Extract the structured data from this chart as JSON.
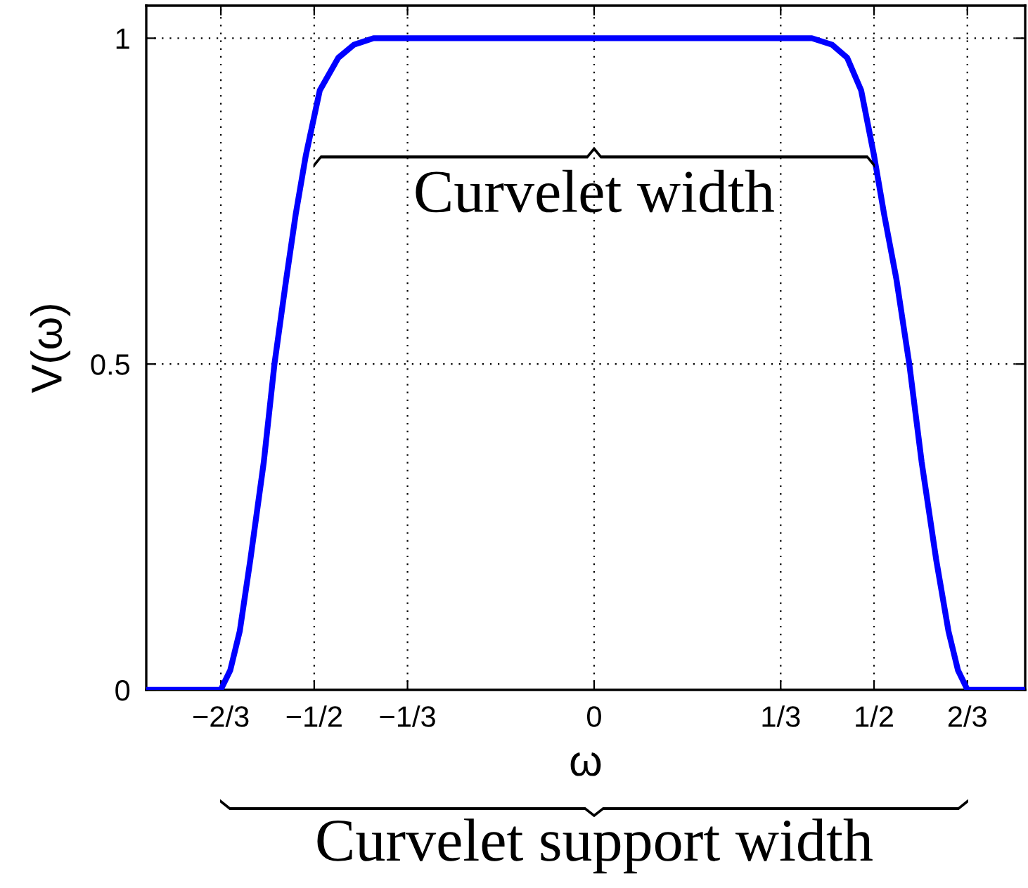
{
  "chart_data": {
    "type": "line",
    "xlabel": "ω",
    "ylabel": "V(ω)",
    "x": [
      -0.8,
      -0.667,
      -0.65,
      -0.633,
      -0.614,
      -0.59,
      -0.571,
      -0.55,
      -0.533,
      -0.515,
      -0.49,
      -0.457,
      -0.429,
      -0.394,
      0.389,
      0.425,
      0.452,
      0.477,
      0.5,
      0.518,
      0.54,
      0.563,
      0.585,
      0.611,
      0.633,
      0.65,
      0.667,
      0.77
    ],
    "series": [
      {
        "color": "#0000ff",
        "values": [
          0,
          0,
          0.03,
          0.09,
          0.2,
          0.35,
          0.5,
          0.63,
          0.73,
          0.82,
          0.92,
          0.97,
          0.99,
          1,
          1,
          0.99,
          0.97,
          0.92,
          0.82,
          0.73,
          0.63,
          0.5,
          0.35,
          0.2,
          0.09,
          0.03,
          0,
          0
        ]
      }
    ],
    "xlim": [
      -0.8,
      0.77
    ],
    "ylim": [
      0,
      1.05
    ],
    "xticks": [
      {
        "value": -0.6667,
        "label": "−2/3"
      },
      {
        "value": -0.5,
        "label": "−1/2"
      },
      {
        "value": -0.3333,
        "label": "−1/3"
      },
      0,
      {
        "value": 0.3333,
        "label": "1/3"
      },
      {
        "value": 0.5,
        "label": "1/2"
      },
      {
        "value": 0.6667,
        "label": "2/3"
      }
    ],
    "yticks": [
      0,
      0.5,
      1
    ],
    "grid": true,
    "line_style": "solid",
    "marker": "none",
    "annotations": [
      "Curvelet width",
      "Curvelet support width"
    ]
  }
}
